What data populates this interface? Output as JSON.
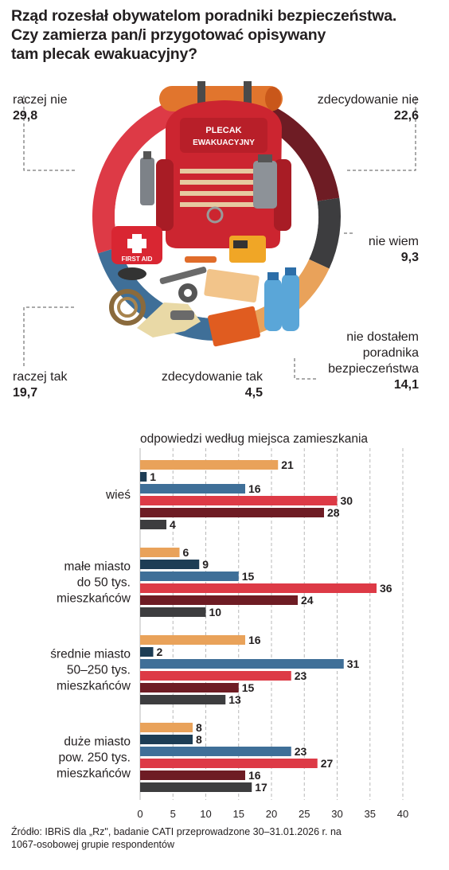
{
  "title_lines": [
    "Rząd rozesłał obywatelom poradniki bezpieczeństwa.",
    "Czy zamierza pan/i przygotować opisywany",
    "tam plecak ewakuacyjny?"
  ],
  "image": {
    "patch_label_line1": "PLECAK",
    "patch_label_line2": "EWAKUACYJNY",
    "kit_label": "FIRST AID"
  },
  "chart_data": [
    {
      "type": "pie",
      "donut": true,
      "slices": [
        {
          "label": "zdecydowanie nie",
          "value": 22.6,
          "value_text": "22,6",
          "color": "#6e1c24"
        },
        {
          "label": "nie wiem",
          "value": 9.3,
          "value_text": "9,3",
          "color": "#3d3d3f"
        },
        {
          "label": "nie dostałem poradnika bezpieczeństwa",
          "value": 14.1,
          "value_text": "14,1",
          "color": "#e9a25a"
        },
        {
          "label": "zdecydowanie tak",
          "value": 4.5,
          "value_text": "4,5",
          "color": "#1d3d55"
        },
        {
          "label": "raczej tak",
          "value": 19.7,
          "value_text": "19,7",
          "color": "#3f6f98"
        },
        {
          "label": "raczej nie",
          "value": 29.8,
          "value_text": "29,8",
          "color": "#dd3a46"
        }
      ]
    },
    {
      "type": "bar",
      "orientation": "horizontal",
      "subtitle": "odpowiedzi według miejsca zamieszkania",
      "categories": [
        [
          "wieś"
        ],
        [
          "małe miasto",
          "do 50 tys.",
          "mieszkańców"
        ],
        [
          "średnie miasto",
          "50–250 tys.",
          "mieszkańców"
        ],
        [
          "duże miasto",
          "pow. 250 tys.",
          "mieszkańców"
        ]
      ],
      "series": [
        {
          "color": "#e9a25a",
          "values": [
            21,
            6,
            16,
            8
          ]
        },
        {
          "color": "#1d3d55",
          "values": [
            1,
            9,
            2,
            8
          ]
        },
        {
          "color": "#3f6f98",
          "values": [
            16,
            15,
            31,
            23
          ]
        },
        {
          "color": "#dd3a46",
          "values": [
            30,
            36,
            23,
            27
          ]
        },
        {
          "color": "#6e1c24",
          "values": [
            28,
            24,
            15,
            16
          ]
        },
        {
          "color": "#3d3d3f",
          "values": [
            4,
            10,
            13,
            17
          ]
        }
      ],
      "x_ticks": [
        0,
        5,
        10,
        15,
        20,
        25,
        30,
        35,
        40
      ],
      "xlim": [
        0,
        40
      ],
      "grid": true
    }
  ],
  "source_lines": [
    "Źródło: IBRiS dla „Rz\", badanie CATI przeprowadzone 30–31.01.2026 r. na",
    "1067-osobowej grupie respondentów"
  ]
}
